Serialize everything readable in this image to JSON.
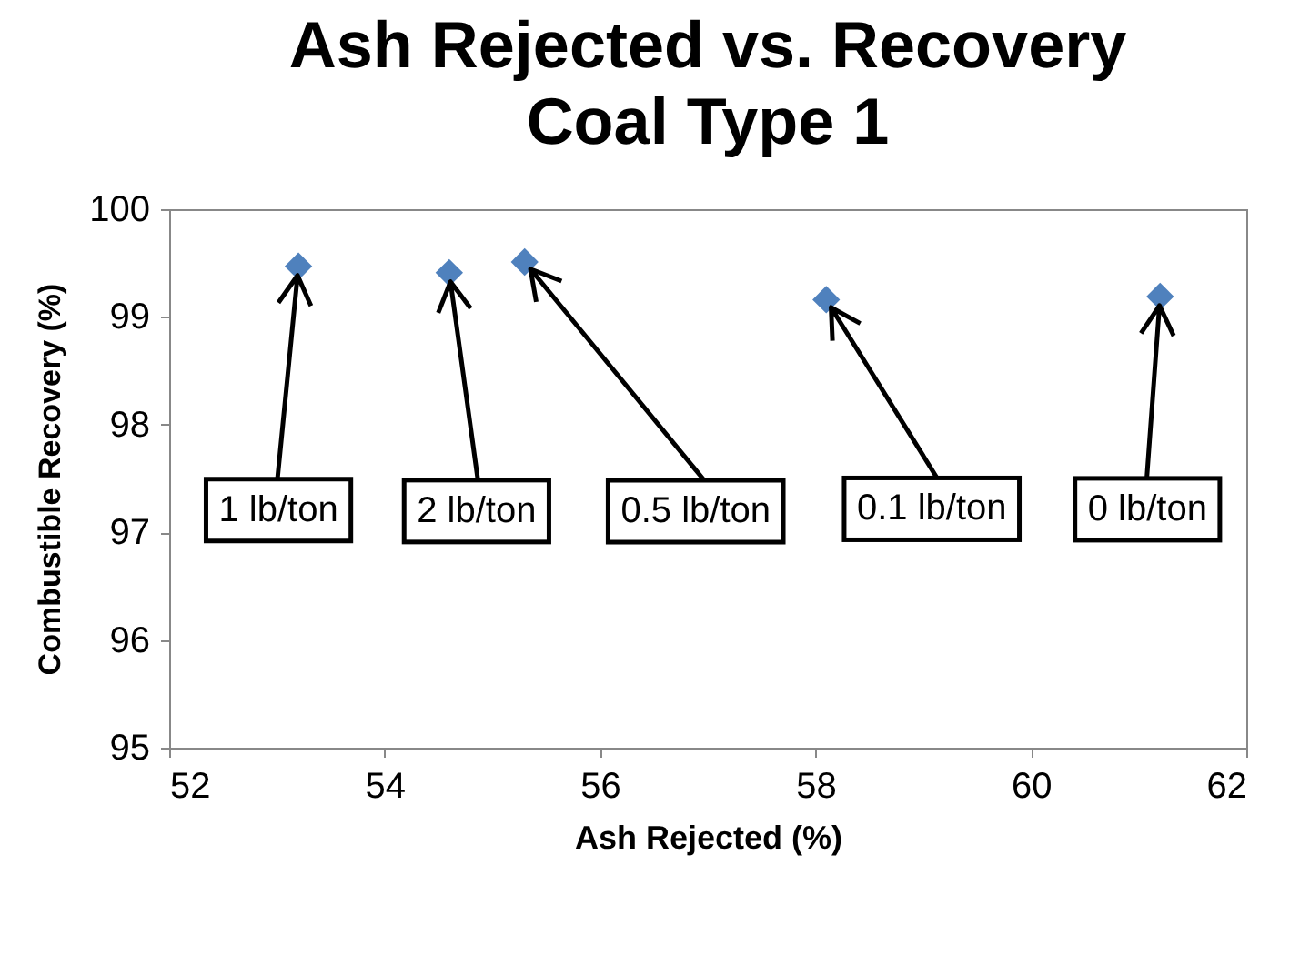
{
  "chart_data": {
    "type": "scatter",
    "title": "Ash Rejected vs. Recovery",
    "subtitle": "Coal Type 1",
    "xlabel": "Ash Rejected (%)",
    "ylabel": "Combustible Recovery (%)",
    "series": [
      {
        "x": [
          53.2,
          54.6,
          55.3,
          58.1,
          61.2
        ],
        "values": [
          99.47,
          99.41,
          99.51,
          99.16,
          99.19
        ],
        "color": "#4f81bd"
      }
    ],
    "xlim": [
      52,
      62
    ],
    "xticks": [
      52,
      54,
      56,
      58,
      60,
      62
    ],
    "ylim": [
      95,
      100
    ],
    "yticks": [
      95,
      96,
      97,
      98,
      99,
      100
    ],
    "marker": "diamond",
    "grid": false,
    "annotations": [
      {
        "text": "1 lb/ton",
        "x": 53.2,
        "y": 99.47
      },
      {
        "text": "2 lb/ton",
        "x": 54.6,
        "y": 99.41
      },
      {
        "text": "0.5 lb/ton",
        "x": 55.3,
        "y": 99.51
      },
      {
        "text": "0.1 lb/ton",
        "x": 58.1,
        "y": 99.16
      },
      {
        "text": "0 lb/ton",
        "x": 61.2,
        "y": 99.19
      }
    ]
  }
}
